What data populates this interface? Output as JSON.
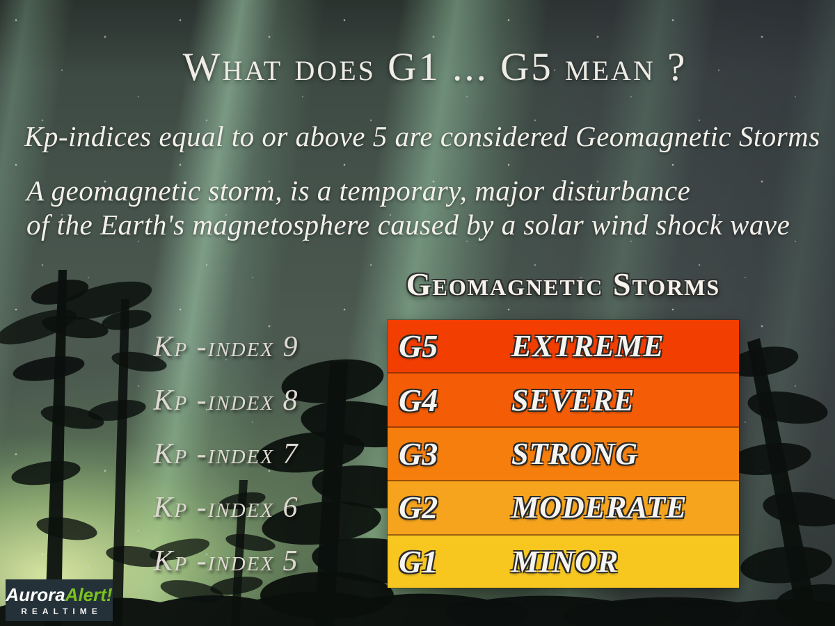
{
  "title": "What does G1 ... G5 mean ?",
  "subtitle": "Kp-indices equal to or above 5 are considered Geomagnetic Storms",
  "description_line1": "A geomagnetic storm, is a temporary, major disturbance",
  "description_line2": "of the Earth's magnetosphere caused by a solar wind shock wave",
  "table": {
    "heading": "Geomagnetic Storms",
    "rows": [
      {
        "level": "G5",
        "severity": "EXTREME",
        "kp_label": "Kp -index 9",
        "color": "#F33E02"
      },
      {
        "level": "G4",
        "severity": "SEVERE",
        "kp_label": "Kp -index 8",
        "color": "#F45C06"
      },
      {
        "level": "G3",
        "severity": "STRONG",
        "kp_label": "Kp -index 7",
        "color": "#F67E0C"
      },
      {
        "level": "G2",
        "severity": "MODERATE",
        "kp_label": "Kp -index 6",
        "color": "#F6A41D"
      },
      {
        "level": "G1",
        "severity": "MINOR",
        "kp_label": "Kp -index 5",
        "color": "#F7C720"
      }
    ]
  },
  "logo": {
    "brand_primary": "Aurora",
    "brand_secondary": "Alert!",
    "tagline": "REALTIME",
    "accent_color": "#7CC220",
    "background_color": "#243138"
  }
}
